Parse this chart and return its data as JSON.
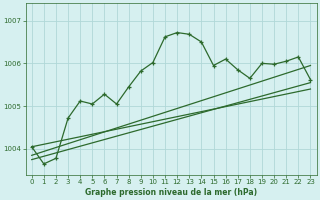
{
  "title": "Graphe pression niveau de la mer (hPa)",
  "background_color": "#d6f0f0",
  "grid_color": "#b0d8d8",
  "line_color": "#2d6a2d",
  "xlim": [
    -0.5,
    23.5
  ],
  "ylim": [
    1003.4,
    1007.4
  ],
  "yticks": [
    1004,
    1005,
    1006,
    1007
  ],
  "xticks": [
    0,
    1,
    2,
    3,
    4,
    5,
    6,
    7,
    8,
    9,
    10,
    11,
    12,
    13,
    14,
    15,
    16,
    17,
    18,
    19,
    20,
    21,
    22,
    23
  ],
  "series1_x": [
    0,
    1,
    2,
    3,
    4,
    5,
    6,
    7,
    8,
    9,
    10,
    11,
    12,
    13,
    14,
    15,
    16,
    17,
    18,
    19,
    20,
    21,
    22,
    23
  ],
  "series1_y": [
    1004.05,
    1003.65,
    1003.78,
    1004.72,
    1005.12,
    1005.05,
    1005.28,
    1005.05,
    1005.45,
    1005.82,
    1006.02,
    1006.62,
    1006.72,
    1006.68,
    1006.5,
    1005.95,
    1006.1,
    1005.85,
    1005.65,
    1006.0,
    1005.98,
    1006.05,
    1006.15,
    1005.62
  ],
  "trend1_x": [
    0,
    23
  ],
  "trend1_y": [
    1003.75,
    1005.55
  ],
  "trend2_x": [
    0,
    23
  ],
  "trend2_y": [
    1003.85,
    1005.95
  ],
  "trend3_x": [
    0,
    23
  ],
  "trend3_y": [
    1004.05,
    1005.4
  ]
}
